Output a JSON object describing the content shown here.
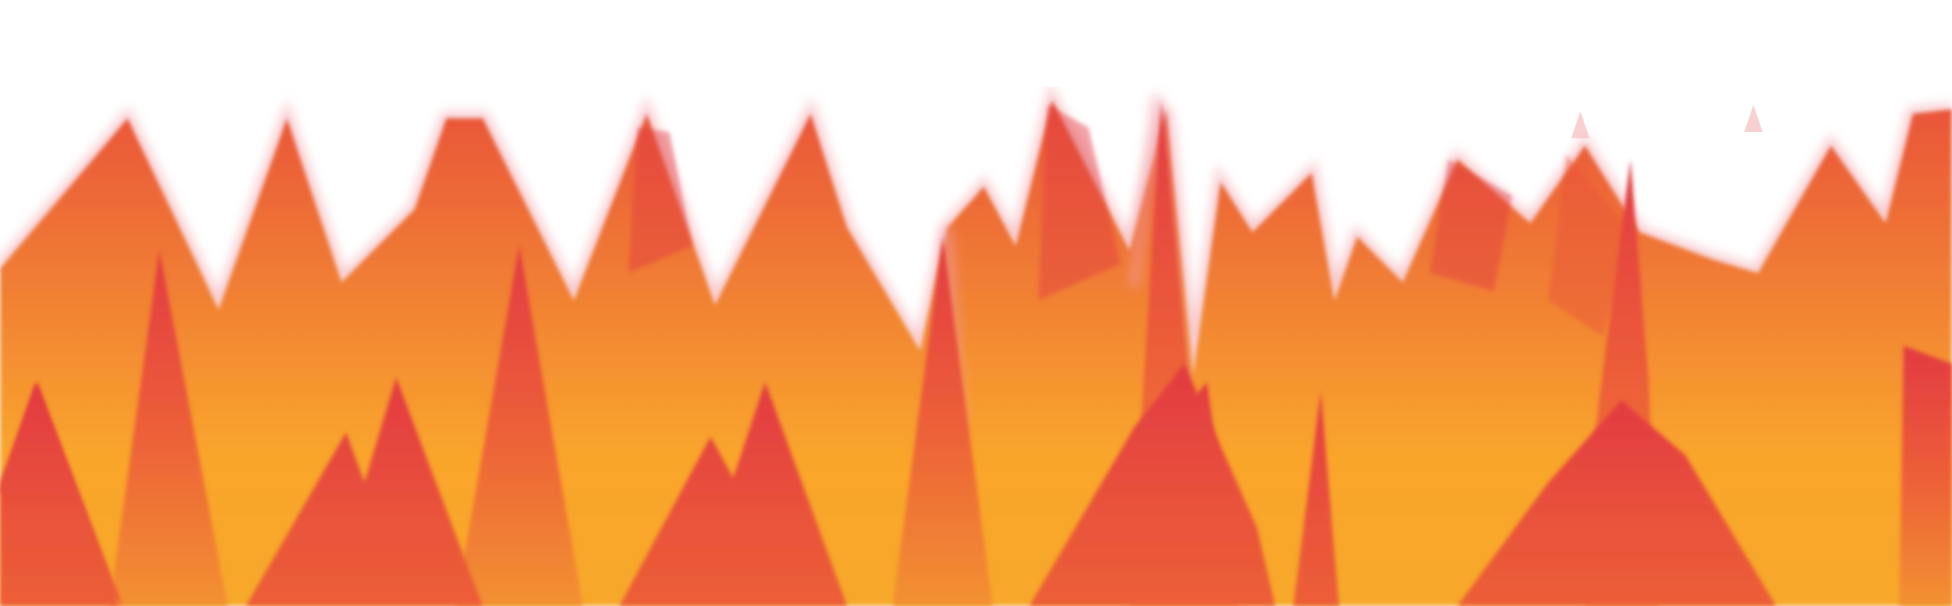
{
  "artwork": {
    "description_icon": "abstract-flame-peaks-icon",
    "colors": {
      "background": "#ffffff",
      "red": "#e23a42",
      "red_orange": "#e9533a",
      "orange": "#f07c34",
      "amber": "#f9a52c",
      "glow": "#f6c4c4"
    }
  }
}
